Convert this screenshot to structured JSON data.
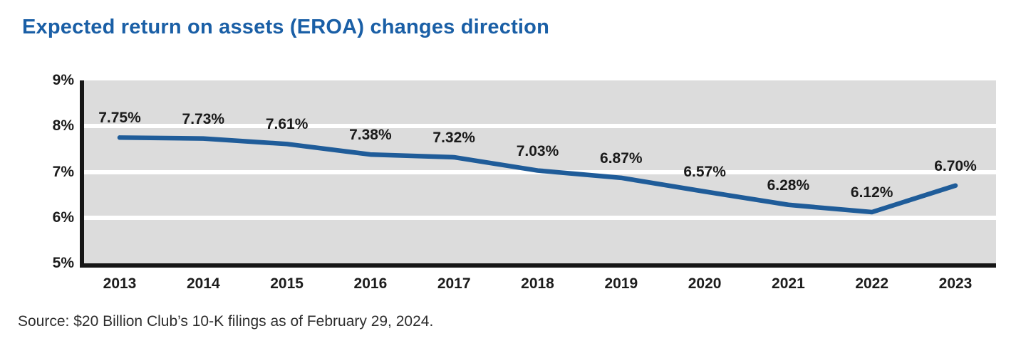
{
  "title": "Expected return on assets (EROA) changes direction",
  "source_note": "Source: $20 Billion Club’s 10-K filings as of February 29, 2024.",
  "colors": {
    "title_blue": "#1a5fa6",
    "line_blue": "#1f5c99",
    "plot_background": "#dcdcdc",
    "gridline_white": "#ffffff",
    "axis_black": "#161616",
    "label_black": "#1a1a1a"
  },
  "chart_data": {
    "type": "line",
    "title": "Expected return on assets (EROA) changes direction",
    "categories": [
      "2013",
      "2014",
      "2015",
      "2016",
      "2017",
      "2018",
      "2019",
      "2020",
      "2021",
      "2022",
      "2023"
    ],
    "series": [
      {
        "name": "EROA",
        "values": [
          7.75,
          7.73,
          7.61,
          7.38,
          7.32,
          7.03,
          6.87,
          6.57,
          6.28,
          6.12,
          6.7
        ],
        "data_labels": [
          "7.75%",
          "7.73%",
          "7.61%",
          "7.38%",
          "7.32%",
          "7.03%",
          "6.87%",
          "6.57%",
          "6.28%",
          "6.12%",
          "6.70%"
        ]
      }
    ],
    "xlabel": "",
    "ylabel": "",
    "ylim": [
      5,
      9
    ],
    "y_ticks": [
      {
        "label": "9%",
        "value": 9
      },
      {
        "label": "8%",
        "value": 8
      },
      {
        "label": "7%",
        "value": 7
      },
      {
        "label": "6%",
        "value": 6
      },
      {
        "label": "5%",
        "value": 5
      }
    ],
    "gridlines": {
      "orientation": "horizontal",
      "at_values": [
        8,
        7,
        6
      ],
      "color": "#ffffff",
      "plot_background": "#dcdcdc"
    },
    "legend": "none",
    "line_color": "#1f5c99"
  }
}
